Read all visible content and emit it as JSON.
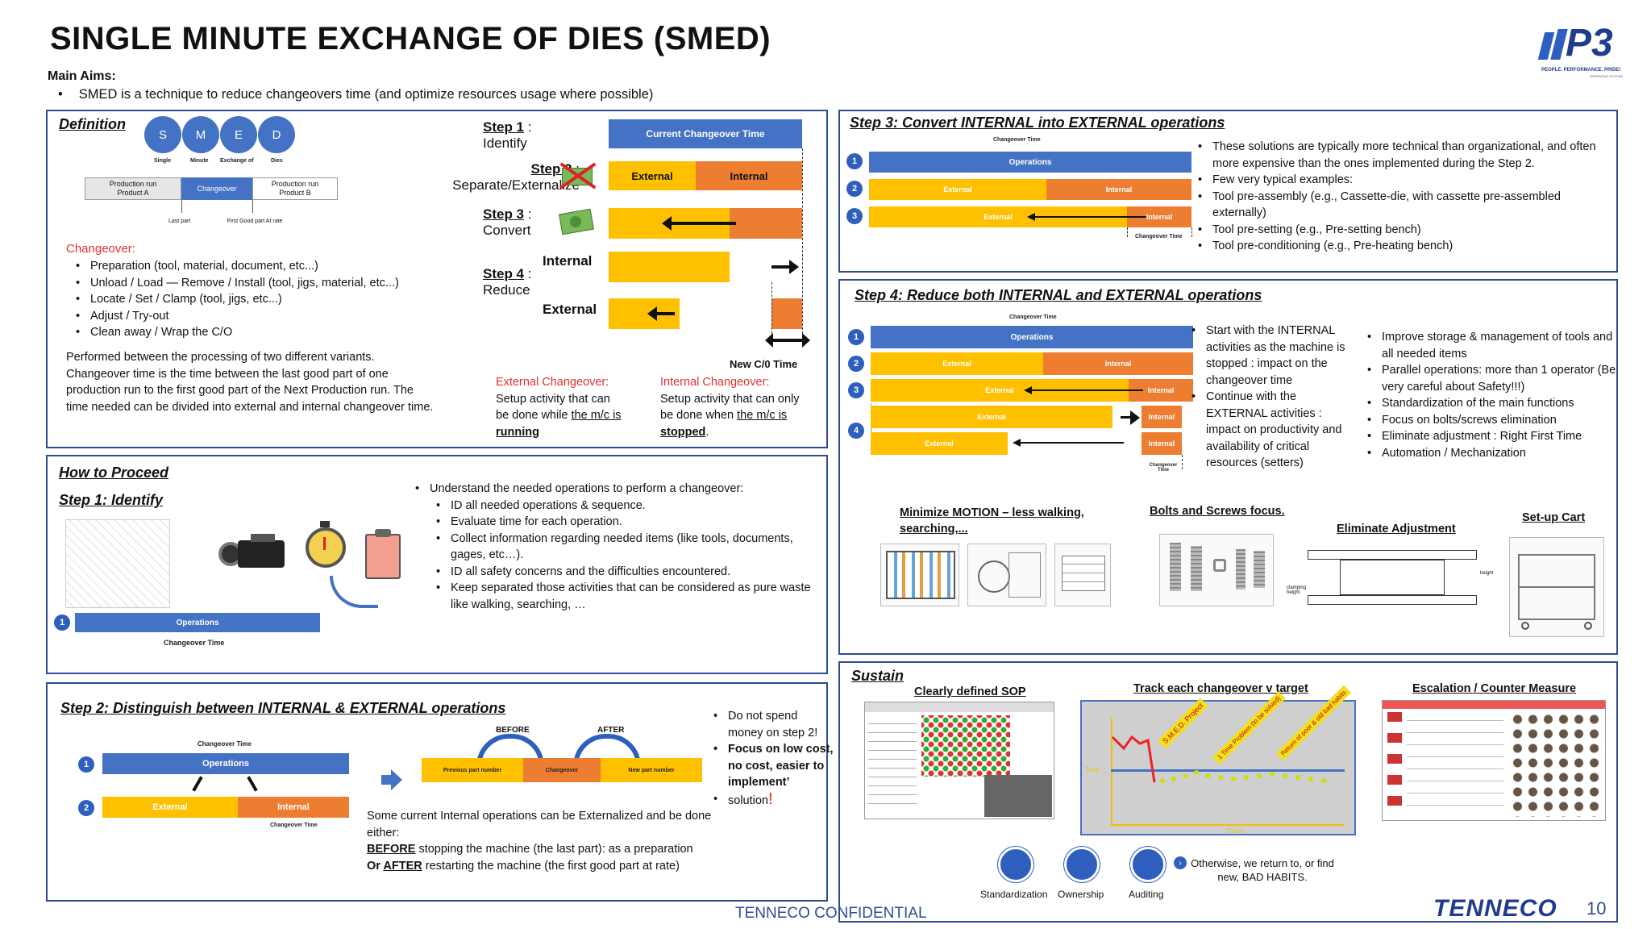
{
  "title": "SINGLE MINUTE EXCHANGE OF DIES (SMED)",
  "main_aims_label": "Main Aims:",
  "main_aims_text": "SMED is a technique to reduce changeovers time (and optimize resources usage where possible)",
  "logo": {
    "text": "P3",
    "tagline": "PEOPLE. PERFORMANCE. PRIDE!",
    "sub": "OPERATING SYSTEM"
  },
  "definition": {
    "header": "Definition",
    "letters": [
      {
        "l": "S",
        "w": "Single"
      },
      {
        "l": "M",
        "w": "Minute"
      },
      {
        "l": "E",
        "w": "Exchange of"
      },
      {
        "l": "D",
        "w": "Dies"
      }
    ],
    "timeline": {
      "a": "Production run Product A",
      "b": "Changeover",
      "c": "Production run Product B",
      "last": "Last part",
      "first": "First Good part At rate"
    },
    "changeover_label": "Changeover:",
    "changeover_items": [
      "Preparation (tool, material, document, etc...)",
      "Unload / Load — Remove / Install (tool, jigs, material, etc...)",
      "Locate / Set / Clamp (tool, jigs, etc...)",
      "Adjust / Try-out",
      "Clean away / Wrap the C/O"
    ],
    "paragraph": "Performed between the processing of two different variants. Changeover time is the time between the last good part of one production run to the first good part of the Next Production run. The time needed can be divided into external and internal changeover time."
  },
  "steps": {
    "s1": "Step 1",
    "s1b": "Identify",
    "s2": "Step 2",
    "s2b": "Separate/Externalize",
    "s3": "Step 3",
    "s3b": "Convert",
    "s4": "Step 4",
    "s4b": "Reduce",
    "colon": ":",
    "current": "Current Changeover Time",
    "external": "External",
    "internal": "Internal",
    "internal_label": "Internal",
    "external_label": "External",
    "new_co": "New C/0 Time",
    "ext_co_title": "External Changeover:",
    "ext_co_text1": "Setup activity that can",
    "ext_co_text2": "be done while ",
    "ext_co_u1": "the m/c is",
    "ext_co_u2": "running",
    "int_co_title": "Internal Changeover:",
    "int_co_text1": "Setup activity that can only",
    "int_co_text2": "be done when ",
    "int_co_u1": "the m/c is",
    "int_co_u2": "stopped",
    "period": "."
  },
  "step3": {
    "header": "Step 3: Convert INTERNAL into EXTERNAL operations",
    "co_time": "Changeover Time",
    "ops": "Operations",
    "ext": "External",
    "int": "Internal",
    "nums": [
      "1",
      "2",
      "3"
    ],
    "bullets": [
      "These solutions are typically more technical than organizational, and often more expensive than the ones implemented during the Step 2.",
      "Few very typical examples:",
      "Tool pre-assembly (e.g., Cassette-die, with cassette pre-assembled externally)",
      "Tool pre-setting (e.g., Pre-setting bench)",
      "Tool pre-conditioning (e.g., Pre-heating bench)"
    ]
  },
  "step4": {
    "header": "Step 4: Reduce both INTERNAL and EXTERNAL operations",
    "co_time": "Changeover Time",
    "ops": "Operations",
    "ext": "External",
    "int": "Internal",
    "nums": [
      "1",
      "2",
      "3",
      "4"
    ],
    "bullets_a": [
      "Start with the INTERNAL activities as the machine is stopped : impact on the changeover time",
      "Continue with the EXTERNAL activities : impact on productivity and availability of critical resources (setters)"
    ],
    "bullets_b": [
      "Improve storage & management of tools and all needed items",
      "Parallel operations: more than 1 operator (Be very careful about Safety!!!)",
      "Standardization of the main functions",
      "Focus on bolts/screws elimination",
      "Eliminate adjustment : Right First Time",
      "Automation / Mechanization"
    ],
    "pics": [
      "Minimize MOTION – less walking, searching,...",
      "Bolts and Screws focus.",
      "Eliminate Adjustment",
      "Set-up Cart"
    ],
    "clamp": "clamping height",
    "height": "height"
  },
  "proceed": {
    "header": "How to Proceed",
    "step1": "Step 1: Identify",
    "ops": "Operations",
    "co_time": "Changeover Time",
    "num": "1",
    "intro": "Understand the needed operations to perform a changeover:",
    "items": [
      "ID all needed operations & sequence.",
      "Evaluate time for each operation.",
      "Collect information regarding needed items (like tools, documents, gages, etc…).",
      "ID all safety concerns and the difficulties encountered.",
      "Keep separated those activities that can be considered as pure waste like walking, searching, …"
    ]
  },
  "step2": {
    "header": "Step 2: Distinguish between INTERNAL & EXTERNAL operations",
    "co_time": "Changeover Time",
    "ops": "Operations",
    "ext": "External",
    "int": "Internal",
    "nums": [
      "1",
      "2"
    ],
    "before": "BEFORE",
    "after": "AFTER",
    "prev": "Previous part number",
    "chg": "Changeover",
    "new": "New part number",
    "text1": "Some current Internal operations can be Externalized and be done either:",
    "before_u": "BEFORE",
    "before_t": " stopping the machine (the last part): as a preparation",
    "or": "Or ",
    "after_u": "AFTER",
    "after_t": " restarting the machine (the first good part at rate)",
    "note1": "Do not spend money on step 2!",
    "note2": "Focus on low cost, no cost, easier to implement’",
    "note3": "solution",
    "excl": "!"
  },
  "sustain": {
    "header": "Sustain",
    "sop": "Clearly defined SOP",
    "track": "Track each changeover v target",
    "escalation": "Escalation  / Counter Measure",
    "chart_notes": [
      "S.M.E.D. Project",
      "1 Time Problem (to be solved)",
      "Return of poor & old bad habits"
    ],
    "time": "Time",
    "cons": "Cons",
    "icons": [
      "Standardization",
      "Ownership",
      "Auditing"
    ],
    "habits": "Otherwise, we return to, or find new, BAD HABITS."
  },
  "footer": {
    "conf": "TENNECO CONFIDENTIAL",
    "brand": "TENNECO",
    "page": "10"
  }
}
